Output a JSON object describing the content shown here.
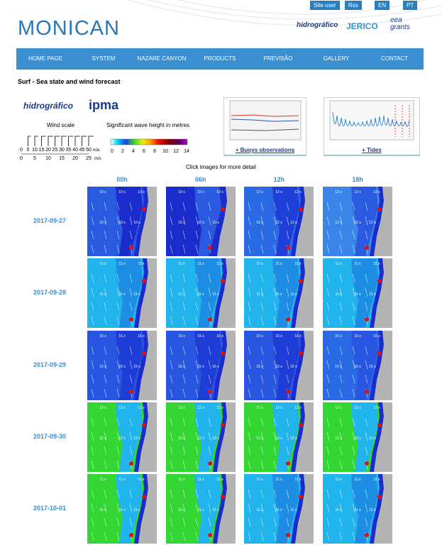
{
  "header": {
    "top_links": [
      "Site user",
      "Rss",
      "EN",
      "PT"
    ],
    "logo": "MONICAN",
    "partners": [
      "hidrográfico",
      "JERICO",
      "eea grants"
    ]
  },
  "nav": [
    "HOME PAGE",
    "SYSTEM",
    "NAZARE CANYON",
    "PRODUCTS",
    "PREVISÃO",
    "GALLERY",
    "CONTACT"
  ],
  "page_title": "Surf - Sea state and wind forecast",
  "sponsors": [
    "hidrográfico",
    "ipma"
  ],
  "wind_scale": {
    "title": "Wind scale",
    "knots": [
      0,
      5,
      10,
      15,
      20,
      25,
      30,
      35,
      40,
      45,
      50
    ],
    "knots_unit": "nós",
    "ms": [
      0,
      5,
      10,
      15,
      20,
      25
    ],
    "ms_unit": "m/s"
  },
  "wave_scale": {
    "title": "Significant wave height in metres",
    "ticks": [
      0,
      2,
      4,
      6,
      8,
      10,
      12,
      14
    ]
  },
  "links": [
    "+ Buoys observations",
    "+ Tides"
  ],
  "hint": "Click images for more detail",
  "forecast": {
    "hours": [
      "00h",
      "06h",
      "12h",
      "18h"
    ],
    "rows": [
      {
        "date": "2017-09-27",
        "tiles": [
          {
            "label": "10 s",
            "sea": "#2a5ae0",
            "patch": "#1a2ccc"
          },
          {
            "label": "10 s",
            "sea": "#1a2ccc",
            "patch": "#2a5ae0"
          },
          {
            "label": "12 s",
            "sea": "#2a6ae4",
            "patch": "#1e40d8"
          },
          {
            "label": "12 s",
            "sea": "#3a86e8",
            "patch": "#2a5ae0"
          }
        ]
      },
      {
        "date": "2017-09-28",
        "tiles": [
          {
            "label": "11 s",
            "sea": "#22b4ec",
            "patch": "#1e8ee4"
          },
          {
            "label": "11 s",
            "sea": "#22b4ec",
            "patch": "#1e8ee4"
          },
          {
            "label": "11 s",
            "sea": "#22b4ec",
            "patch": "#1e8ee4"
          },
          {
            "label": "11 s",
            "sea": "#22b4ec",
            "patch": "#1e8ee4"
          }
        ]
      },
      {
        "date": "2017-09-29",
        "tiles": [
          {
            "label": "15 s",
            "sea": "#2856e0",
            "patch": "#1e3cd6"
          },
          {
            "label": "15 s",
            "sea": "#2856e0",
            "patch": "#1e3cd6"
          },
          {
            "label": "15 s",
            "sea": "#2856e0",
            "patch": "#1e3cd6"
          },
          {
            "label": "15 s",
            "sea": "#2a6ae4",
            "patch": "#2856e0"
          }
        ]
      },
      {
        "date": "2017-09-30",
        "tiles": [
          {
            "label": "12 s",
            "sea": "#33d633",
            "patch": "#22b4ec"
          },
          {
            "label": "12 s",
            "sea": "#33d633",
            "patch": "#22b4ec"
          },
          {
            "label": "12 s",
            "sea": "#33d633",
            "patch": "#22b4ec"
          },
          {
            "label": "12 s",
            "sea": "#33d633",
            "patch": "#22b4ec"
          }
        ]
      },
      {
        "date": "2017-10-01",
        "tiles": [
          {
            "label": "11 s",
            "sea": "#33d633",
            "patch": "#22b4ec"
          },
          {
            "label": "11 s",
            "sea": "#33d633",
            "patch": "#22b4ec"
          },
          {
            "label": "11 s",
            "sea": "#22b4ec",
            "patch": "#1e8ee4"
          },
          {
            "label": "11 s",
            "sea": "#22b4ec",
            "patch": "#1e8ee4"
          }
        ]
      }
    ]
  }
}
